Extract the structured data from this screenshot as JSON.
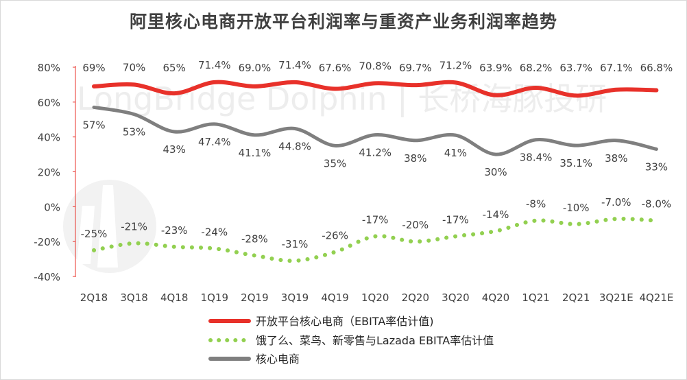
{
  "chart_data": {
    "type": "line",
    "title": "阿里核心电商开放平台利润率与重资产业务利润率趋势",
    "watermark": "LongBridge Dolphin | 长桥海豚投研",
    "categories": [
      "2Q18",
      "3Q18",
      "4Q18",
      "1Q19",
      "2Q19",
      "3Q19",
      "4Q19",
      "1Q20",
      "2Q20",
      "3Q20",
      "4Q20",
      "1Q21",
      "2Q21",
      "3Q21E",
      "4Q21E"
    ],
    "ylim": [
      -40,
      80
    ],
    "yticks": [
      80,
      60,
      40,
      20,
      0,
      -20,
      -40
    ],
    "ytick_labels": [
      "80%",
      "60%",
      "40%",
      "20%",
      "0%",
      "-20%",
      "-40%"
    ],
    "grid": false,
    "legend_position": "bottom",
    "series": [
      {
        "name": "开放平台核心电商（EBITA率估计值)",
        "color": "#e8312a",
        "style": "solid",
        "values": [
          69,
          70,
          65,
          71.4,
          69.0,
          71.4,
          67.6,
          70.8,
          69.7,
          71.2,
          63.9,
          68.2,
          63.7,
          67.1,
          66.8
        ],
        "labels": [
          "69%",
          "70%",
          "65%",
          "71.4%",
          "69.0%",
          "71.4%",
          "67.6%",
          "70.8%",
          "69.7%",
          "71.2%",
          "63.9%",
          "68.2%",
          "63.7%",
          "67.1%",
          "66.8%"
        ]
      },
      {
        "name": "饿了么、菜鸟、新零售与Lazada EBITA率估计值",
        "color": "#92d050",
        "style": "dotted",
        "values": [
          -25,
          -21,
          -23,
          -24,
          -28,
          -31,
          -26,
          -17,
          -20,
          -17,
          -14,
          -8,
          -10,
          -7.0,
          -8.0
        ],
        "labels": [
          "-25%",
          "-21%",
          "-23%",
          "-24%",
          "-28%",
          "-31%",
          "-26%",
          "-17%",
          "-20%",
          "-17%",
          "-14%",
          "-8%",
          "-10%",
          "-7.0%",
          "-8.0%"
        ]
      },
      {
        "name": "核心电商",
        "color": "#7f7f7f",
        "style": "solid",
        "values": [
          57,
          53,
          43,
          47.4,
          41.1,
          44.8,
          35,
          41.2,
          38,
          41,
          30,
          38.4,
          35.1,
          38,
          33
        ],
        "labels": [
          "57%",
          "53%",
          "43%",
          "47.4%",
          "41.1%",
          "44.8%",
          "35%",
          "41.2%",
          "38%",
          "41%",
          "30%",
          "38.4%",
          "35.1%",
          "38%",
          "33%"
        ]
      }
    ]
  }
}
